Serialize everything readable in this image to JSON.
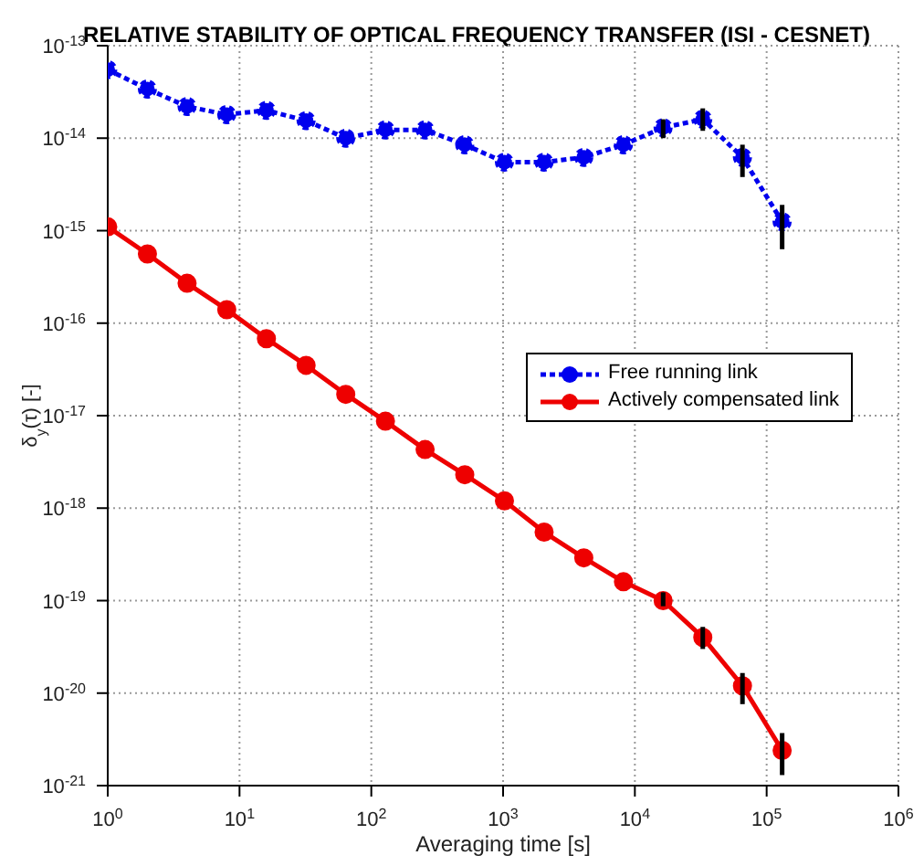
{
  "chart_data": {
    "type": "line",
    "title": "RELATIVE STABILITY OF OPTICAL FREQUENCY TRANSFER (ISI - CESNET)",
    "xlabel": "Averaging time [s]",
    "ylabel": "δ$_{y}$(τ) [-]",
    "x": [
      1,
      2,
      4,
      8,
      16,
      32,
      64,
      128,
      256,
      512,
      1024,
      2048,
      4096,
      8192,
      16384,
      32768,
      65536,
      131072
    ],
    "series": [
      {
        "name": "Free running link",
        "color": "#0000ee",
        "line_style": "dotted",
        "values": [
          5.5e-14,
          3.4e-14,
          2.2e-14,
          1.8e-14,
          2e-14,
          1.55e-14,
          1e-14,
          1.23e-14,
          1.23e-14,
          8.5e-15,
          5.5e-15,
          5.5e-15,
          6.2e-15,
          8.5e-15,
          1.3e-14,
          1.6e-14,
          6.2e-15,
          1.25e-15
        ],
        "errors": [
          null,
          null,
          null,
          null,
          null,
          null,
          null,
          null,
          null,
          null,
          null,
          null,
          null,
          null,
          [
            1e-14,
            1.6e-14
          ],
          [
            1.2e-14,
            2.1e-14
          ],
          [
            3.8e-15,
            8.5e-15
          ],
          [
            6.3e-16,
            1.9e-15
          ]
        ]
      },
      {
        "name": "Actively compensated link",
        "color": "#ee0000",
        "line_style": "solid",
        "values": [
          1.1e-15,
          5.6e-16,
          2.7e-16,
          1.4e-16,
          6.8e-17,
          3.5e-17,
          1.7e-17,
          8.7e-18,
          4.3e-18,
          2.3e-18,
          1.2e-18,
          5.5e-19,
          2.9e-19,
          1.6e-19,
          1e-19,
          4e-20,
          1.2e-20,
          2.4e-21
        ],
        "errors": [
          null,
          null,
          null,
          null,
          null,
          null,
          null,
          null,
          null,
          null,
          null,
          null,
          null,
          null,
          [
            8.7e-20,
            1.23e-19
          ],
          [
            3e-20,
            5.2e-20
          ],
          [
            7.6e-21,
            1.65e-20
          ],
          [
            1.3e-21,
            3.7e-21
          ]
        ]
      }
    ],
    "log": "xy",
    "xlim": [
      1,
      1000000
    ],
    "ylim": [
      1e-21,
      1e-13
    ],
    "xticks": [
      {
        "value": 1,
        "label": "10$^{0}$"
      },
      {
        "value": 10,
        "label": "10$^{1}$"
      },
      {
        "value": 100,
        "label": "10$^{2}$"
      },
      {
        "value": 1000,
        "label": "10$^{3}$"
      },
      {
        "value": 10000,
        "label": "10$^{4}$"
      },
      {
        "value": 100000,
        "label": "10$^{5}$"
      },
      {
        "value": 1000000,
        "label": "10$^{6}$"
      }
    ],
    "yticks": [
      {
        "value": 1e-21,
        "label": "10$^{-21}$"
      },
      {
        "value": 1e-20,
        "label": "10$^{-20}$"
      },
      {
        "value": 1e-19,
        "label": "10$^{-19}$"
      },
      {
        "value": 1e-18,
        "label": "10$^{-18}$"
      },
      {
        "value": 1e-17,
        "label": "10$^{-17}$"
      },
      {
        "value": 1e-16,
        "label": "10$^{-16}$"
      },
      {
        "value": 1e-15,
        "label": "10$^{-15}$"
      },
      {
        "value": 1e-14,
        "label": "10$^{-14}$"
      },
      {
        "value": 1e-13,
        "label": "10$^{-13}$"
      }
    ],
    "grid": true,
    "legend": "right",
    "marker": "circle"
  }
}
